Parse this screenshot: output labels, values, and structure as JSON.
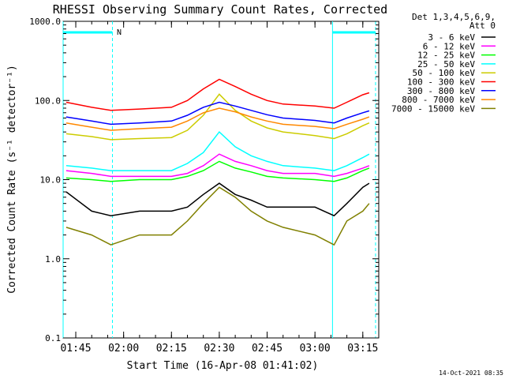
{
  "chart_data": {
    "type": "line",
    "title": "RHESSI Observing Summary Count Rates, Corrected",
    "xlabel": "Start Time (16-Apr-08 01:41:02)",
    "ylabel": "Corrected Count Rate (s⁻¹ detector⁻¹)",
    "x_scale": "time",
    "x_range": [
      "01:41:02",
      "03:20:00"
    ],
    "x_ticks": [
      "01:45",
      "02:00",
      "02:15",
      "02:30",
      "02:45",
      "03:00",
      "03:15"
    ],
    "y_scale": "log",
    "ylim": [
      0.1,
      1000.0
    ],
    "y_ticks": [
      "0.1",
      "1.0",
      "10.0",
      "100.0",
      "1000.0"
    ],
    "legend_position": "top-right",
    "legend_header": [
      "Det 1,3,4,5,6,9,",
      "Att 0"
    ],
    "timestamp": "14-Oct-2021 08:35",
    "night_marker": "N",
    "night_intervals": [
      [
        "01:41:02",
        "01:56:30"
      ],
      [
        "03:05:30",
        "03:19:00"
      ]
    ],
    "x_grid": false,
    "y_grid": false,
    "series": [
      {
        "name": "3 - 6 keV",
        "color": "#000000",
        "x": [
          "01:42",
          "01:50",
          "01:56",
          "02:05",
          "02:15",
          "02:20",
          "02:25",
          "02:30",
          "02:35",
          "02:40",
          "02:45",
          "02:50",
          "03:00",
          "03:06",
          "03:10",
          "03:15",
          "03:17"
        ],
        "values": [
          7,
          4,
          3.5,
          4,
          4,
          4.5,
          6.5,
          9,
          6.5,
          5.5,
          4.5,
          4.5,
          4.5,
          3.5,
          5,
          8,
          9
        ]
      },
      {
        "name": "6 - 12 keV",
        "color": "#ff00ff",
        "x": [
          "01:42",
          "01:50",
          "01:56",
          "02:05",
          "02:15",
          "02:20",
          "02:25",
          "02:30",
          "02:35",
          "02:40",
          "02:45",
          "02:50",
          "03:00",
          "03:06",
          "03:10",
          "03:15",
          "03:17"
        ],
        "values": [
          13,
          12,
          11,
          11,
          11,
          12,
          15,
          21,
          17,
          15,
          13,
          12,
          12,
          11,
          12,
          14,
          15
        ]
      },
      {
        "name": "12 - 25 keV",
        "color": "#00ff00",
        "x": [
          "01:42",
          "01:50",
          "01:56",
          "02:05",
          "02:15",
          "02:20",
          "02:25",
          "02:30",
          "02:35",
          "02:40",
          "02:45",
          "02:50",
          "03:00",
          "03:06",
          "03:10",
          "03:15",
          "03:17"
        ],
        "values": [
          10.5,
          10,
          9.5,
          10,
          10,
          11,
          13,
          17,
          14,
          12.5,
          11,
          10.5,
          10,
          9.5,
          10.5,
          13,
          14
        ]
      },
      {
        "name": "25 - 50 keV",
        "color": "#00ffff",
        "x": [
          "01:42",
          "01:50",
          "01:56",
          "02:05",
          "02:15",
          "02:20",
          "02:25",
          "02:30",
          "02:35",
          "02:40",
          "02:45",
          "02:50",
          "03:00",
          "03:06",
          "03:10",
          "03:15",
          "03:17"
        ],
        "values": [
          15,
          14,
          13,
          13,
          13,
          16,
          22,
          40,
          26,
          20,
          17,
          15,
          14,
          13,
          15,
          19,
          21
        ]
      },
      {
        "name": "50 - 100 keV",
        "color": "#cccc00",
        "x": [
          "01:42",
          "01:50",
          "01:56",
          "02:05",
          "02:15",
          "02:20",
          "02:25",
          "02:30",
          "02:35",
          "02:40",
          "02:45",
          "02:50",
          "03:00",
          "03:06",
          "03:10",
          "03:15",
          "03:17"
        ],
        "values": [
          38,
          35,
          32,
          33,
          34,
          42,
          65,
          120,
          75,
          55,
          45,
          40,
          36,
          33,
          38,
          48,
          52
        ]
      },
      {
        "name": "100 - 300 keV",
        "color": "#ff0000",
        "x": [
          "01:42",
          "01:50",
          "01:56",
          "02:05",
          "02:15",
          "02:20",
          "02:25",
          "02:30",
          "02:35",
          "02:40",
          "02:45",
          "02:50",
          "03:00",
          "03:06",
          "03:10",
          "03:15",
          "03:17"
        ],
        "values": [
          95,
          82,
          75,
          78,
          82,
          100,
          140,
          185,
          150,
          120,
          100,
          90,
          85,
          80,
          95,
          118,
          125
        ]
      },
      {
        "name": "300 - 800 keV",
        "color": "#0000ff",
        "x": [
          "01:42",
          "01:50",
          "01:56",
          "02:05",
          "02:15",
          "02:20",
          "02:25",
          "02:30",
          "02:35",
          "02:40",
          "02:45",
          "02:50",
          "03:00",
          "03:06",
          "03:10",
          "03:15",
          "03:17"
        ],
        "values": [
          62,
          55,
          50,
          52,
          55,
          65,
          82,
          95,
          85,
          75,
          66,
          60,
          56,
          52,
          60,
          70,
          74
        ]
      },
      {
        "name": "800 - 7000 keV",
        "color": "#ff8800",
        "x": [
          "01:42",
          "01:50",
          "01:56",
          "02:05",
          "02:15",
          "02:20",
          "02:25",
          "02:30",
          "02:35",
          "02:40",
          "02:45",
          "02:50",
          "03:00",
          "03:06",
          "03:10",
          "03:15",
          "03:17"
        ],
        "values": [
          52,
          46,
          42,
          44,
          46,
          55,
          70,
          80,
          72,
          62,
          55,
          50,
          47,
          44,
          50,
          58,
          62
        ]
      },
      {
        "name": "7000 - 15000 keV",
        "color": "#808000",
        "x": [
          "01:42",
          "01:50",
          "01:56",
          "02:05",
          "02:15",
          "02:20",
          "02:25",
          "02:30",
          "02:35",
          "02:40",
          "02:45",
          "02:50",
          "03:00",
          "03:06",
          "03:10",
          "03:15",
          "03:17"
        ],
        "values": [
          2.5,
          2,
          1.5,
          2,
          2,
          3,
          5,
          8,
          6,
          4,
          3,
          2.5,
          2,
          1.5,
          3,
          4,
          5
        ]
      }
    ]
  }
}
